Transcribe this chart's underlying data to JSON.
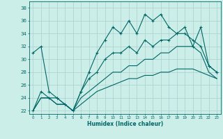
{
  "xlabel": "Humidex (Indice chaleur)",
  "bg_color": "#cceee8",
  "grid_color": "#aacccc",
  "line_color": "#006666",
  "xlim": [
    -0.5,
    23.5
  ],
  "ylim": [
    21.5,
    39.0
  ],
  "xticks": [
    0,
    1,
    2,
    3,
    4,
    5,
    6,
    7,
    8,
    9,
    10,
    11,
    12,
    13,
    14,
    15,
    16,
    17,
    18,
    19,
    20,
    21,
    22,
    23
  ],
  "yticks": [
    22,
    24,
    26,
    28,
    30,
    32,
    34,
    36,
    38
  ],
  "s1_x": [
    0,
    1,
    2,
    3,
    4,
    5,
    6,
    7,
    8,
    9,
    10,
    11,
    12,
    13,
    14,
    15,
    16,
    17,
    18,
    19,
    20,
    21,
    22,
    23
  ],
  "s1_y": [
    31,
    32,
    25,
    24,
    23,
    22,
    25,
    28,
    31,
    33,
    35,
    34,
    36,
    34,
    37,
    36,
    37,
    35,
    34,
    35,
    32,
    35,
    29,
    28
  ],
  "s2_x": [
    0,
    1,
    2,
    3,
    4,
    5,
    6,
    7,
    8,
    9,
    10,
    11,
    12,
    13,
    14,
    15,
    16,
    17,
    18,
    19,
    20,
    21,
    22,
    23
  ],
  "s2_y": [
    22,
    25,
    24,
    24,
    23,
    22,
    25,
    27,
    28,
    30,
    31,
    31,
    32,
    31,
    33,
    32,
    33,
    33,
    34,
    34,
    33,
    32,
    29,
    28
  ],
  "s3_x": [
    0,
    1,
    2,
    3,
    4,
    5,
    6,
    7,
    8,
    9,
    10,
    11,
    12,
    13,
    14,
    15,
    16,
    17,
    18,
    19,
    20,
    21,
    22,
    23
  ],
  "s3_y": [
    22,
    24,
    24,
    23,
    23,
    22,
    24,
    25,
    26,
    27,
    28,
    28,
    29,
    29,
    30,
    30,
    31,
    31,
    32,
    32,
    32,
    31,
    28,
    27
  ],
  "s4_x": [
    0,
    1,
    2,
    3,
    4,
    5,
    6,
    7,
    8,
    9,
    10,
    11,
    12,
    13,
    14,
    15,
    16,
    17,
    18,
    19,
    20,
    21,
    22,
    23
  ],
  "s4_y": [
    22,
    24,
    24,
    23,
    23,
    22,
    23,
    24,
    25,
    25.5,
    26,
    26.5,
    27,
    27,
    27.5,
    27.5,
    28,
    28,
    28.5,
    28.5,
    28.5,
    28,
    27.5,
    27
  ]
}
